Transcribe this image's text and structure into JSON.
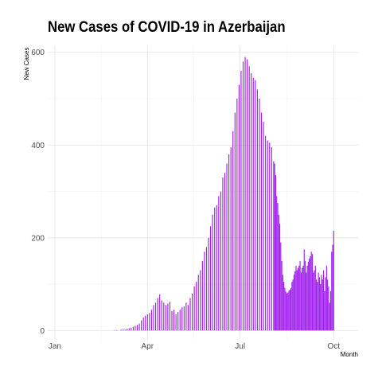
{
  "chart_data": {
    "type": "bar",
    "title": "New Cases of COVID-19 in Azerbaijan",
    "xlabel": "Month",
    "ylabel": "New Cases",
    "color": "#a020f0",
    "grid": true,
    "x_range": [
      "2019-12-25",
      "2020-10-25"
    ],
    "ylim": [
      -20,
      615
    ],
    "y_ticks": [
      0,
      200,
      400,
      600
    ],
    "x_ticks": [
      {
        "date": "2020-01-01",
        "label": "Jan"
      },
      {
        "date": "2020-04-01",
        "label": "Apr"
      },
      {
        "date": "2020-07-01",
        "label": "Jul"
      },
      {
        "date": "2020-10-01",
        "label": "Oct"
      }
    ],
    "series": [
      {
        "start_date": "2020-02-29",
        "values": [
          1,
          0,
          1,
          0,
          0,
          0,
          2,
          0,
          2,
          0,
          2,
          0,
          4,
          0,
          5,
          0,
          6,
          0,
          8,
          0,
          10,
          0,
          12,
          0,
          15,
          0,
          22,
          0,
          28,
          0,
          32,
          0,
          35,
          0,
          38,
          0,
          45,
          0,
          55,
          0,
          60,
          0,
          70,
          0,
          78,
          0,
          65,
          0,
          60,
          0,
          55,
          0,
          58,
          0,
          62,
          0,
          42,
          0,
          45,
          0,
          35,
          0,
          40,
          0,
          45,
          0,
          50,
          0,
          52,
          0,
          60,
          0,
          55,
          0,
          70,
          0,
          80,
          0,
          95,
          0,
          105,
          0,
          120,
          0,
          130,
          0,
          150,
          0,
          170,
          0,
          180,
          0,
          200,
          0,
          225,
          0,
          250,
          0,
          265,
          0,
          270,
          0,
          290,
          0,
          300,
          0,
          330,
          0,
          340,
          0,
          360,
          0,
          380,
          0,
          395,
          0,
          430,
          0,
          470,
          0,
          500,
          0,
          530,
          0,
          560,
          0,
          580,
          0,
          590,
          0,
          585,
          0,
          570,
          0,
          555,
          0,
          545,
          0,
          540,
          0,
          520,
          0,
          500,
          0,
          470,
          0,
          450,
          0,
          420,
          0,
          410,
          0,
          405,
          0,
          395,
          0,
          365,
          360,
          335,
          290,
          275,
          250,
          230,
          190,
          150,
          120,
          105,
          92,
          84,
          80,
          82,
          86,
          88,
          92,
          105,
          110,
          120,
          128,
          140,
          130,
          135,
          140,
          150,
          125,
          135,
          140,
          175,
          150,
          125,
          140,
          148,
          155,
          160,
          170,
          165,
          125,
          130,
          140,
          110,
          105,
          125,
          115,
          100,
          120,
          110,
          130,
          85,
          115,
          140,
          110,
          95,
          60,
          85,
          170,
          185,
          215
        ]
      }
    ]
  }
}
